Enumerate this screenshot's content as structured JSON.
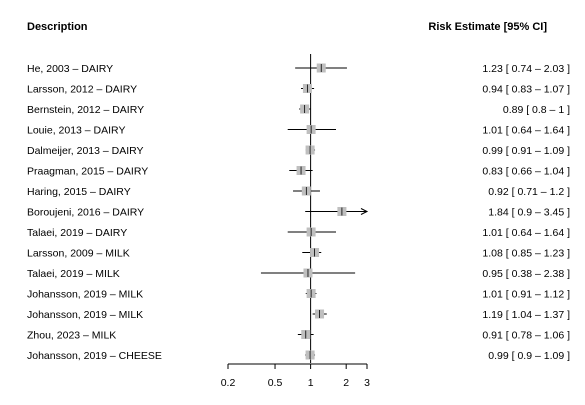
{
  "chart_data": {
    "type": "forest",
    "title": "",
    "headers": {
      "left": "Description",
      "right": "Risk Estimate [95% CI]"
    },
    "x_scale": "log",
    "xlim": [
      0.2,
      3
    ],
    "reference_line": 1,
    "x_ticks": [
      "0.2",
      "0.5",
      "1",
      "2",
      "3"
    ],
    "marker_color": "#bfbfbf",
    "rows": [
      {
        "label": "He, 2003 – DAIRY",
        "est": 1.23,
        "lo": 0.74,
        "hi": 2.03,
        "text": "1.23 [ 0.74 – 2.03 ]"
      },
      {
        "label": "Larsson, 2012 – DAIRY",
        "est": 0.94,
        "lo": 0.83,
        "hi": 1.07,
        "text": "0.94 [ 0.83 – 1.07 ]"
      },
      {
        "label": "Bernstein, 2012 – DAIRY",
        "est": 0.89,
        "lo": 0.8,
        "hi": 1,
        "text": "0.89 [ 0.8 – 1 ]"
      },
      {
        "label": "Louie, 2013 – DAIRY",
        "est": 1.01,
        "lo": 0.64,
        "hi": 1.64,
        "text": "1.01 [ 0.64 – 1.64 ]"
      },
      {
        "label": "Dalmeijer, 2013 – DAIRY",
        "est": 0.99,
        "lo": 0.91,
        "hi": 1.09,
        "text": "0.99 [ 0.91 – 1.09 ]"
      },
      {
        "label": "Praagman, 2015 – DAIRY",
        "est": 0.83,
        "lo": 0.66,
        "hi": 1.04,
        "text": "0.83 [ 0.66 – 1.04 ]"
      },
      {
        "label": "Haring, 2015 – DAIRY",
        "est": 0.92,
        "lo": 0.71,
        "hi": 1.2,
        "text": "0.92 [ 0.71 – 1.2 ]"
      },
      {
        "label": "Boroujeni, 2016 – DAIRY",
        "est": 1.84,
        "lo": 0.9,
        "hi": 3.45,
        "text": "1.84 [ 0.9 – 3.45 ]"
      },
      {
        "label": "Talaei, 2019 – DAIRY",
        "est": 1.01,
        "lo": 0.64,
        "hi": 1.64,
        "text": "1.01 [ 0.64 – 1.64 ]"
      },
      {
        "label": "Larsson, 2009 – MILK",
        "est": 1.08,
        "lo": 0.85,
        "hi": 1.23,
        "text": "1.08 [ 0.85 – 1.23 ]"
      },
      {
        "label": "Talaei, 2019 – MILK",
        "est": 0.95,
        "lo": 0.38,
        "hi": 2.38,
        "text": "0.95 [ 0.38 – 2.38 ]"
      },
      {
        "label": "Johansson, 2019 – MILK",
        "est": 1.01,
        "lo": 0.91,
        "hi": 1.12,
        "text": "1.01 [ 0.91 – 1.12 ]"
      },
      {
        "label": "Johansson, 2019 – MILK",
        "est": 1.19,
        "lo": 1.04,
        "hi": 1.37,
        "text": "1.19 [ 1.04 – 1.37 ]"
      },
      {
        "label": "Zhou, 2023 – MILK",
        "est": 0.91,
        "lo": 0.78,
        "hi": 1.06,
        "text": "0.91 [ 0.78 – 1.06 ]"
      },
      {
        "label": "Johansson, 2019 – CHEESE",
        "est": 0.99,
        "lo": 0.9,
        "hi": 1.09,
        "text": "0.99 [ 0.9 – 1.09 ]"
      }
    ]
  }
}
